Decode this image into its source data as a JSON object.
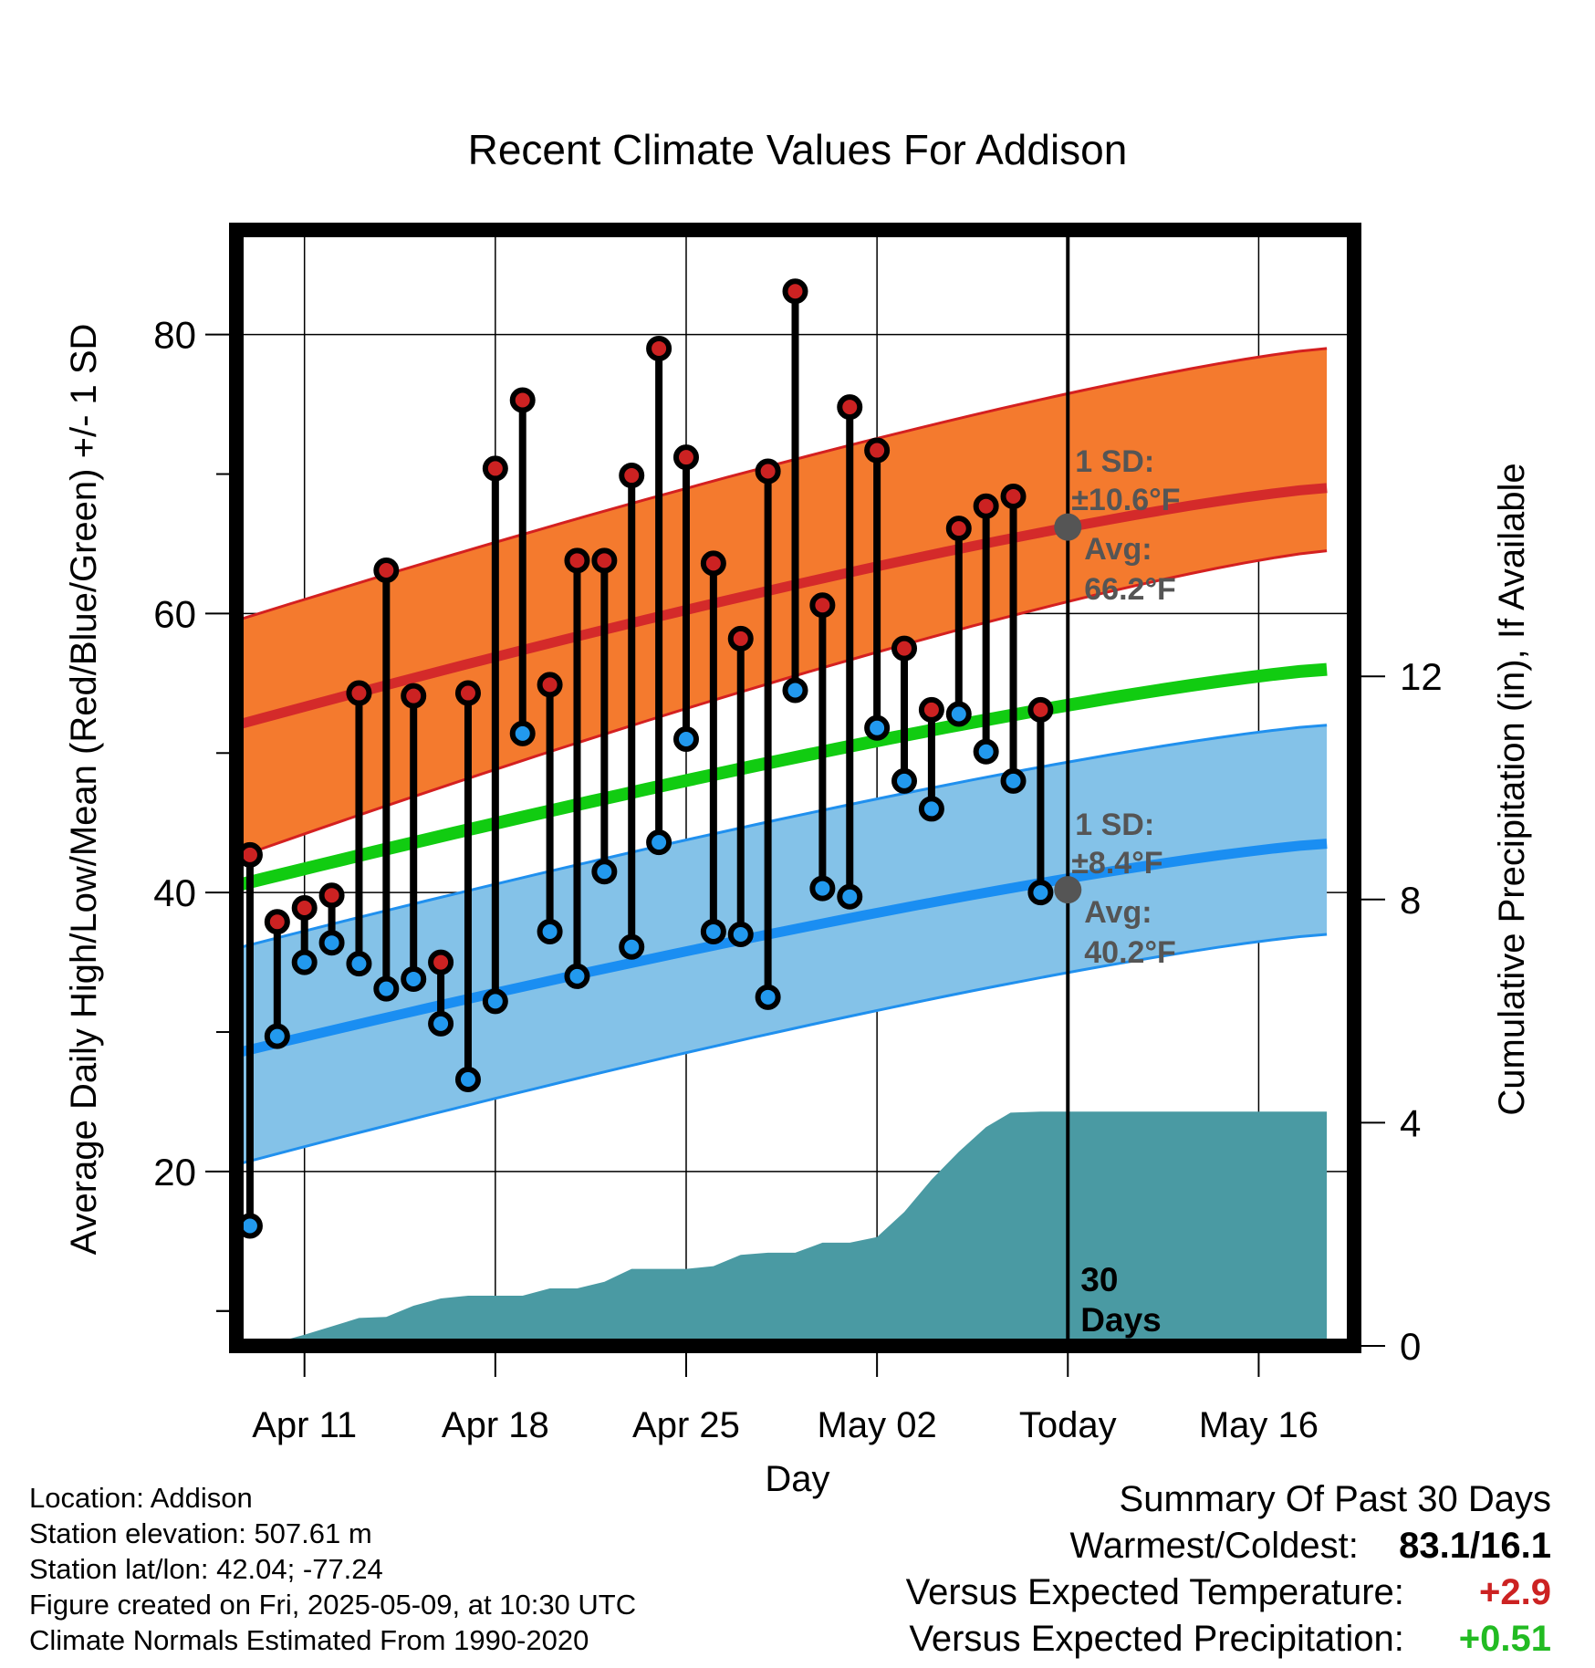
{
  "chart_data": {
    "type": "line",
    "title": "Recent Climate Values For Addison",
    "xlabel": "Day",
    "ylabel": "Average Daily High/Low/Mean (Red/Blue/Green) +/- 1 SD",
    "y2label": "Cumulative Precipitation (in), If Available",
    "ylim": [
      7.5,
      87.5
    ],
    "y2lim": [
      0,
      20
    ],
    "y_ticks": [
      20,
      40,
      60,
      80
    ],
    "y_minor_ticks": [
      10,
      30,
      50,
      70
    ],
    "y2_ticks": [
      0,
      4,
      8,
      12
    ],
    "x_range_days": [
      -30.5,
      10.5
    ],
    "x_tick_labels": [
      {
        "day": -28,
        "label": "Apr 11"
      },
      {
        "day": -21,
        "label": "Apr 18"
      },
      {
        "day": -14,
        "label": "Apr 25"
      },
      {
        "day": -7,
        "label": "May 02"
      },
      {
        "day": 0,
        "label": "Today"
      },
      {
        "day": 7,
        "label": "May 16"
      }
    ],
    "today_label": "30\nDays",
    "normals": {
      "high_avg": [
        52.0,
        69.0
      ],
      "high_sd_band": [
        [
          42.5,
          64.5
        ],
        [
          59.5,
          79.0
        ]
      ],
      "mean_avg": [
        40.5,
        56.0
      ],
      "low_avg": [
        28.5,
        43.5
      ],
      "low_sd_band": [
        [
          20.5,
          37.0
        ],
        [
          36.0,
          52.0
        ]
      ],
      "x_span": [
        -30.5,
        9.5
      ]
    },
    "annotations": {
      "high": {
        "sd_label": "1 SD:",
        "sd_value": "±10.6°F",
        "avg_label": "Avg:",
        "avg_value": "66.2°F",
        "avg": 66.2
      },
      "low": {
        "sd_label": "1 SD:",
        "sd_value": "±8.4°F",
        "avg_label": "Avg:",
        "avg_value": "40.2°F",
        "avg": 40.2
      }
    },
    "days": [
      -30,
      -29,
      -28,
      -27,
      -26,
      -25,
      -24,
      -23,
      -22,
      -21,
      -20,
      -19,
      -18,
      -17,
      -16,
      -15,
      -14,
      -13,
      -12,
      -11,
      -10,
      -9,
      -8,
      -7,
      -6,
      -5,
      -4,
      -3,
      -2,
      -1
    ],
    "highs": [
      42.7,
      37.9,
      38.9,
      39.8,
      54.3,
      63.1,
      54.1,
      35.0,
      54.3,
      70.4,
      75.3,
      54.9,
      63.8,
      63.8,
      69.9,
      79.0,
      71.2,
      63.6,
      58.2,
      70.2,
      83.1,
      60.6,
      74.8,
      71.7,
      57.5,
      53.1,
      66.1,
      67.7,
      68.4,
      53.1
    ],
    "lows": [
      16.1,
      29.7,
      35.0,
      36.4,
      34.9,
      33.1,
      33.8,
      30.6,
      26.6,
      32.2,
      51.4,
      37.2,
      34.0,
      41.5,
      36.1,
      43.6,
      51.0,
      37.2,
      37.0,
      32.5,
      54.5,
      40.3,
      39.7,
      51.8,
      48.0,
      46.0,
      52.8,
      50.1,
      48.0,
      40.0
    ],
    "low_above_high_avg_color": "#2299ee",
    "precip_days": [
      -29.5,
      -28,
      -27,
      -26,
      -25,
      -24,
      -23,
      -22,
      -21,
      -20,
      -19,
      -18,
      -17,
      -16,
      -15,
      -14,
      -13,
      -12,
      -11,
      -10,
      -9,
      -8,
      -7,
      -6,
      -5,
      -4,
      -3,
      -2.1,
      -1,
      0,
      1,
      9.5
    ],
    "precip_cum": [
      0,
      0.2,
      0.35,
      0.5,
      0.52,
      0.72,
      0.85,
      0.9,
      0.9,
      0.9,
      1.03,
      1.03,
      1.15,
      1.38,
      1.38,
      1.38,
      1.43,
      1.63,
      1.67,
      1.67,
      1.85,
      1.85,
      1.95,
      2.4,
      2.98,
      3.48,
      3.92,
      4.18,
      4.2,
      4.2,
      4.2,
      4.2
    ],
    "colors": {
      "high_band": "#f47a2e",
      "high_band_edge": "#d42020",
      "high_avg": "#d42a2a",
      "mean_avg": "#11cc11",
      "low_band": "#84c2e8",
      "low_band_edge": "#2090ee",
      "low_avg": "#1a8ef2",
      "precip": "#4a9aa3",
      "high_dot": "#cc2222",
      "low_dot": "#2299ee",
      "avg_marker": "#555555",
      "annotation_text": "#555555"
    }
  },
  "info": {
    "location": "Location: Addison",
    "elevation": "Station elevation: 507.61 m",
    "latlon": "Station lat/lon: 42.04; -77.24",
    "created": "Figure created on Fri, 2025-05-09, at 10:30 UTC",
    "normals": "Climate Normals Estimated From 1990-2020"
  },
  "summary": {
    "title": "Summary Of Past 30 Days",
    "warm_cold_label": "Warmest/Coldest:",
    "warm_cold_value": "83.1/16.1",
    "temp_label": "Versus Expected Temperature:",
    "temp_value": "+2.9",
    "precip_label": "Versus Expected Precipitation:",
    "precip_value": "+0.51"
  }
}
